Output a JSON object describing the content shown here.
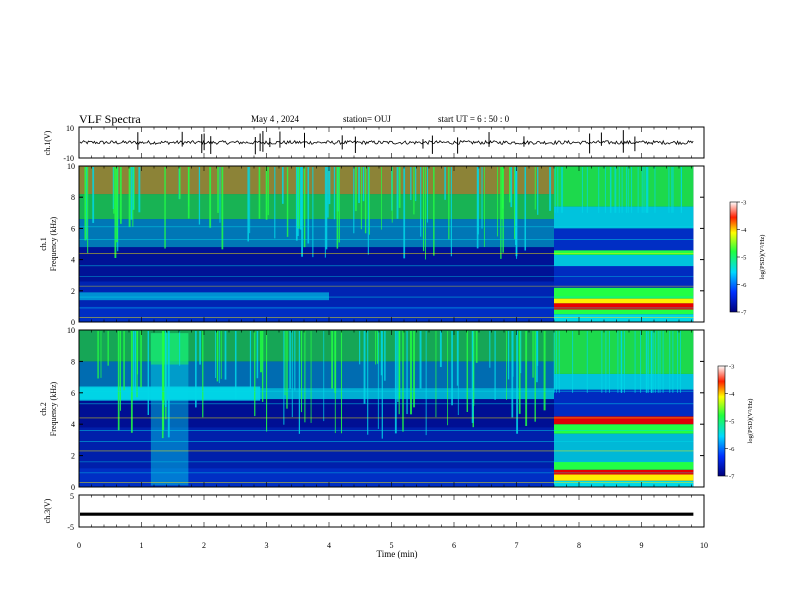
{
  "header": {
    "title": "VLF Spectra",
    "date": "May 4 , 2024",
    "station": "station= OUJ",
    "start": "start UT = 6 : 50 : 0"
  },
  "chart_data": [
    {
      "type": "line",
      "panel": "ch1-waveform",
      "ylabel": "ch.1(V)",
      "ylim": [
        -10,
        10
      ],
      "ytick_labels": [
        "10",
        "-10"
      ],
      "baseline": 0
    },
    {
      "type": "heatmap",
      "panel": "ch1-spectrogram",
      "ylabel": "ch.1\nFrequency (kHz)",
      "ylim": [
        0,
        10
      ],
      "yticks": [
        "0",
        "2",
        "4",
        "6",
        "8",
        "10"
      ],
      "transition_time_min": 7.6,
      "colorbar": {
        "label": "log(PSD)(V²/Hz)",
        "range": [
          -7,
          -3
        ],
        "ticks": [
          "-3",
          "-4",
          "-5",
          "-6",
          "-7"
        ]
      }
    },
    {
      "type": "heatmap",
      "panel": "ch2-spectrogram",
      "ylabel": "ch.2\nFrequency (kHz)",
      "ylim": [
        0,
        10
      ],
      "yticks": [
        "0",
        "2",
        "4",
        "6",
        "8",
        "10"
      ],
      "transition_time_min": 7.6,
      "colorbar": {
        "label": "log(PSD)(V²/Hz)",
        "range": [
          -7,
          -3
        ],
        "ticks": [
          "-3",
          "-4",
          "-5",
          "-6",
          "-7"
        ]
      }
    },
    {
      "type": "line",
      "panel": "ch3-waveform",
      "ylabel": "ch.3(V)",
      "ylim": [
        -5,
        5
      ],
      "ytick_labels": [
        "5",
        "-5"
      ],
      "baseline": -1
    }
  ],
  "xaxis": {
    "label": "Time (min)",
    "range": [
      0,
      10
    ],
    "ticks": [
      "0",
      "1",
      "2",
      "3",
      "4",
      "5",
      "6",
      "7",
      "8",
      "9",
      "10"
    ],
    "data_end_min": 9.83
  },
  "colors": {
    "navy": "#00007a",
    "blue": "#0033cc",
    "cyan": "#00d8e8",
    "green": "#22ff44",
    "yellow": "#ffee00",
    "red": "#e80000"
  }
}
